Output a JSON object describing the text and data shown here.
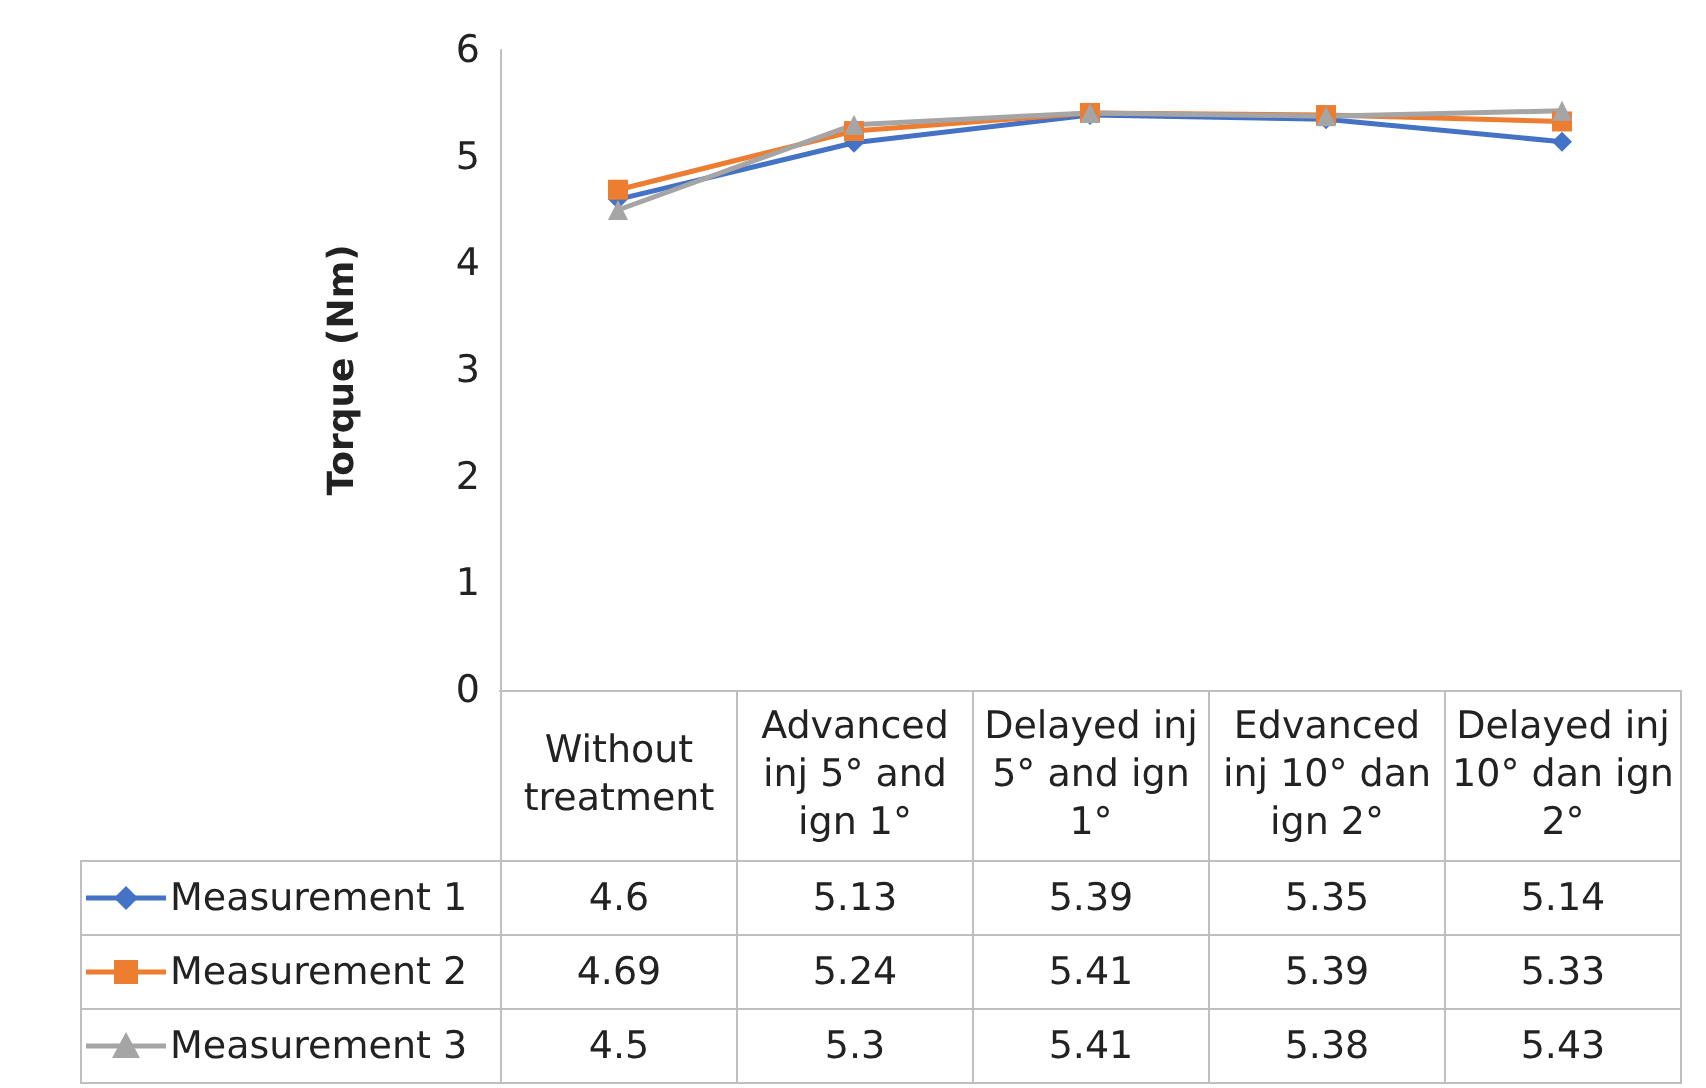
{
  "chart_data": {
    "type": "line",
    "ylabel": "Torque (Nm)",
    "categories": [
      "Without treatment",
      "Advanced inj 5° and ign 1°",
      "Delayed inj 5° and ign 1°",
      "Edvanced inj 10° dan ign 2°",
      "Delayed inj 10° dan ign 2°"
    ],
    "series": [
      {
        "name": "Measurement 1",
        "color": "#4472c4",
        "marker": "diamond",
        "values": [
          4.6,
          5.13,
          5.39,
          5.35,
          5.14
        ]
      },
      {
        "name": "Measurement 2",
        "color": "#ed7d31",
        "marker": "square",
        "values": [
          4.69,
          5.24,
          5.41,
          5.39,
          5.33
        ]
      },
      {
        "name": "Measurement 3",
        "color": "#a5a5a5",
        "marker": "triangle",
        "values": [
          4.5,
          5.3,
          5.41,
          5.38,
          5.43
        ]
      }
    ],
    "ylim": [
      0,
      6
    ],
    "yticks": [
      0,
      1,
      2,
      3,
      4,
      5,
      6
    ],
    "grid": false,
    "legend": "bottom",
    "data_labels": true
  }
}
